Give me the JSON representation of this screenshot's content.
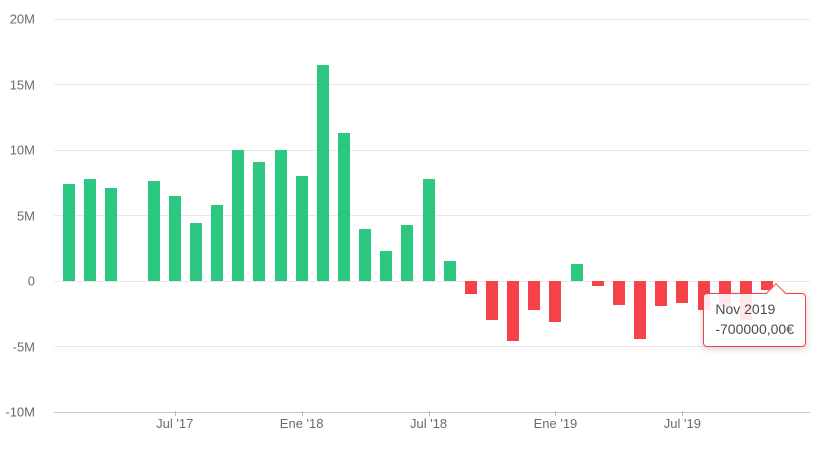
{
  "chart_data": {
    "type": "bar",
    "title": "",
    "xlabel": "",
    "ylabel": "",
    "ylim": [
      -10,
      20
    ],
    "grid": true,
    "legend": false,
    "currency_symbol": "€",
    "positive_color": "#2cc781",
    "negative_color": "#f54349",
    "y_axis_ticks": [
      {
        "value": 20,
        "label": "20M"
      },
      {
        "value": 15,
        "label": "15M"
      },
      {
        "value": 10,
        "label": "10M"
      },
      {
        "value": 5,
        "label": "5M"
      },
      {
        "value": 0,
        "label": "0"
      },
      {
        "value": -5,
        "label": "-5M"
      },
      {
        "value": -10,
        "label": "-10M"
      }
    ],
    "x_axis_shown_labels": [
      "Jul '17",
      "Ene '18",
      "Jul '18",
      "Ene '19",
      "Jul '19"
    ],
    "values_unit": "millions EUR",
    "months": [
      {
        "month": "Feb '17",
        "value": 7.4,
        "axis_label": null
      },
      {
        "month": "Mar '17",
        "value": 7.8,
        "axis_label": null
      },
      {
        "month": "Abr '17",
        "value": 7.1,
        "axis_label": null
      },
      {
        "month": "May '17",
        "value": 0,
        "axis_label": null
      },
      {
        "month": "Jun '17",
        "value": 7.6,
        "axis_label": null
      },
      {
        "month": "Jul '17",
        "value": 6.5,
        "axis_label": "Jul '17"
      },
      {
        "month": "Ago '17",
        "value": 4.4,
        "axis_label": null
      },
      {
        "month": "Sep '17",
        "value": 5.8,
        "axis_label": null
      },
      {
        "month": "Oct '17",
        "value": 10.0,
        "axis_label": null
      },
      {
        "month": "Nov '17",
        "value": 9.1,
        "axis_label": null
      },
      {
        "month": "Dic '17",
        "value": 10.0,
        "axis_label": null
      },
      {
        "month": "Ene '18",
        "value": 8.0,
        "axis_label": "Ene '18"
      },
      {
        "month": "Feb '18",
        "value": 16.5,
        "axis_label": null
      },
      {
        "month": "Mar '18",
        "value": 11.3,
        "axis_label": null
      },
      {
        "month": "Abr '18",
        "value": 4.0,
        "axis_label": null
      },
      {
        "month": "May '18",
        "value": 2.3,
        "axis_label": null
      },
      {
        "month": "Jun '18",
        "value": 4.3,
        "axis_label": null
      },
      {
        "month": "Jul '18",
        "value": 7.8,
        "axis_label": "Jul '18"
      },
      {
        "month": "Ago '18",
        "value": 1.5,
        "axis_label": null
      },
      {
        "month": "Sep '18",
        "value": -1.0,
        "axis_label": null
      },
      {
        "month": "Oct '18",
        "value": -3.0,
        "axis_label": null
      },
      {
        "month": "Nov '18",
        "value": -4.6,
        "axis_label": null
      },
      {
        "month": "Dic '18",
        "value": -2.2,
        "axis_label": null
      },
      {
        "month": "Ene '19",
        "value": -3.1,
        "axis_label": "Ene '19"
      },
      {
        "month": "Feb '19",
        "value": 1.3,
        "axis_label": null
      },
      {
        "month": "Mar '19",
        "value": -0.4,
        "axis_label": null
      },
      {
        "month": "Abr '19",
        "value": -1.8,
        "axis_label": null
      },
      {
        "month": "May '19",
        "value": -4.4,
        "axis_label": null
      },
      {
        "month": "Jun '19",
        "value": -1.9,
        "axis_label": null
      },
      {
        "month": "Jul '19",
        "value": -1.7,
        "axis_label": "Jul '19"
      },
      {
        "month": "Ago '19",
        "value": -2.2,
        "axis_label": null
      },
      {
        "month": "Sep '19",
        "value": -2.0,
        "axis_label": null
      },
      {
        "month": "Oct '19",
        "value": -3.0,
        "axis_label": null
      },
      {
        "month": "Nov '19",
        "value": -0.7,
        "axis_label": null
      }
    ]
  },
  "tooltip": {
    "title": "Nov 2019",
    "value": "-700000,00€",
    "target_month": "Nov '19"
  }
}
